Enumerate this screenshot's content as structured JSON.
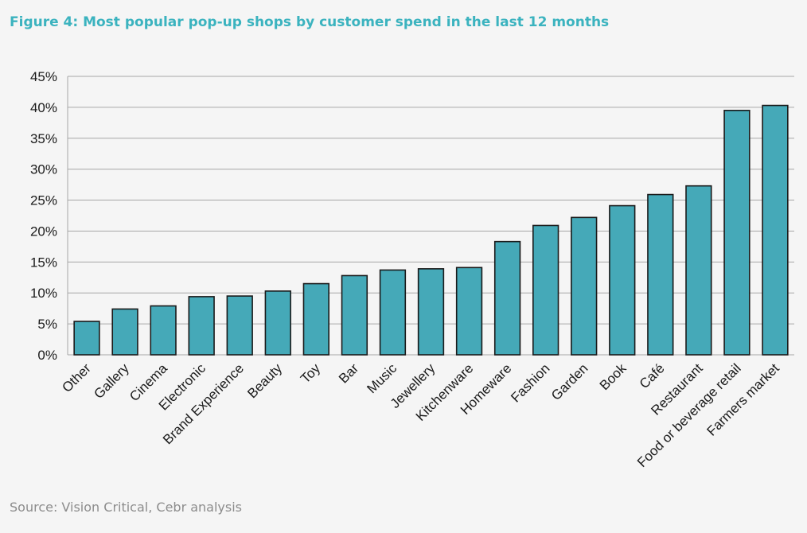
{
  "figure": {
    "title": "Figure 4: Most popular pop-up shops by customer spend in the last 12 months",
    "source": "Source: Vision Critical, Cebr analysis"
  },
  "colors": {
    "bar_fill": "#45a9b8",
    "bar_stroke": "#1a1a1a",
    "title": "#3bb3bf",
    "grid": "#a6a6a6",
    "axis_text": "#1a1a1a",
    "source_text": "#8c8c8c"
  },
  "chart_data": {
    "type": "bar",
    "title": "Figure 4: Most popular pop-up shops by customer spend in the last 12 months",
    "xlabel": "",
    "ylabel": "",
    "ylim": [
      0,
      45
    ],
    "ytick_values": [
      0,
      5,
      10,
      15,
      20,
      25,
      30,
      35,
      40,
      45
    ],
    "ytick_labels": [
      "0%",
      "5%",
      "10%",
      "15%",
      "20%",
      "25%",
      "30%",
      "35%",
      "40%",
      "45%"
    ],
    "grid": true,
    "legend": "none",
    "categories": [
      "Other",
      "Gallery",
      "Cinema",
      "Electronic",
      "Brand Experience",
      "Beauty",
      "Toy",
      "Bar",
      "Music",
      "Jewellery",
      "Kitchenware",
      "Homeware",
      "Fashion",
      "Garden",
      "Book",
      "Café",
      "Restaurant",
      "Food or beverage retail",
      "Farmers market"
    ],
    "values": [
      5.4,
      7.4,
      7.9,
      9.4,
      9.5,
      10.3,
      11.5,
      12.8,
      13.7,
      13.9,
      14.1,
      18.3,
      20.9,
      22.2,
      24.1,
      25.9,
      27.3,
      39.5,
      40.3
    ]
  }
}
